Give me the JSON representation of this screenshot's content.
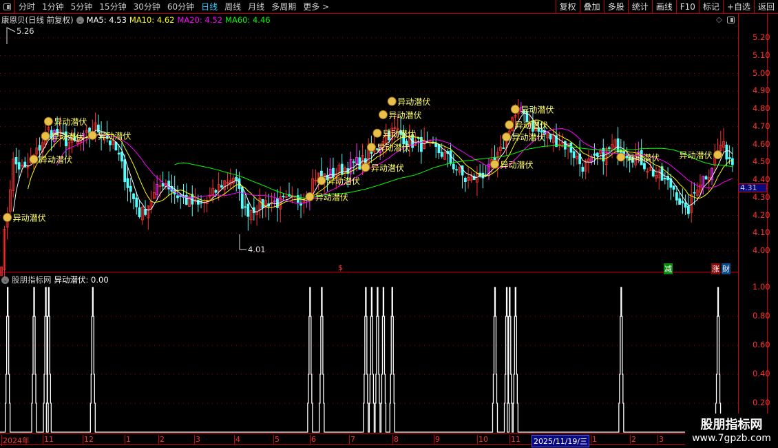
{
  "toolbar": {
    "periods": [
      "分时",
      "1分钟",
      "5分钟",
      "15分钟",
      "30分钟",
      "60分钟",
      "日线",
      "周线",
      "月线",
      "多周期",
      "更多 >"
    ],
    "active_period": "日线",
    "buttons": [
      "复权",
      "叠加",
      "多股",
      "统计",
      "画线",
      "F10",
      "标记",
      "+自选",
      "返回"
    ]
  },
  "header": {
    "title": "康恩贝(日线 前复权)",
    "ma5": "MA5: 4.53",
    "ma10": "MA10: 4.62",
    "ma20": "MA20: 4.52",
    "ma60": "MA60: 4.46"
  },
  "colors": {
    "up": "#ff3232",
    "down": "#54ffff",
    "ma5": "#ffffff",
    "ma10": "#ffff00",
    "ma20": "#ff00ff",
    "ma60": "#00ff00",
    "axis": "#ff3333",
    "grid": "#b00000"
  },
  "chart_data": {
    "type": "candlestick",
    "price_axis": [
      "5.20",
      "5.10",
      "5.00",
      "4.90",
      "4.80",
      "4.70",
      "4.60",
      "4.50",
      "4.40",
      "4.30",
      "4.20",
      "4.10",
      "4.00"
    ],
    "ylim": [
      3.9,
      5.3
    ],
    "approx_close": [
      3.95,
      4.5,
      4.45,
      4.55,
      4.68,
      4.65,
      4.6,
      4.62,
      4.7,
      4.65,
      4.55,
      4.35,
      4.2,
      4.3,
      4.4,
      4.32,
      4.28,
      4.25,
      4.3,
      4.38,
      4.42,
      4.22,
      4.25,
      4.28,
      4.27,
      4.28,
      4.3,
      4.42,
      4.42,
      4.45,
      4.48,
      4.5,
      4.55,
      4.65,
      4.68,
      4.62,
      4.6,
      4.58,
      4.55,
      4.48,
      4.4,
      4.42,
      4.45,
      4.55,
      4.75,
      4.78,
      4.68,
      4.65,
      4.62,
      4.58,
      4.48,
      4.5,
      4.55,
      4.6,
      4.55,
      4.52,
      4.45,
      4.4,
      4.35,
      4.2,
      4.38,
      4.45,
      4.6,
      4.5
    ],
    "high_label": "5.26",
    "low_label": "4.01",
    "current_price": "4.31",
    "signal_label": "异动潜伏",
    "signal_bars": [
      2,
      11,
      15,
      16,
      31,
      105,
      109,
      124,
      126,
      128,
      130,
      133,
      168,
      172,
      173,
      175,
      211,
      244
    ]
  },
  "markers": {
    "dollar": "$",
    "jian": "减",
    "zhang": "涨",
    "cai": "财"
  },
  "indicator": {
    "name": "股朋指标网",
    "value": "异动潜伏: 0.00",
    "axis": [
      "1.00",
      "0.80",
      "0.60",
      "0.40",
      "0.20"
    ]
  },
  "date_axis": [
    "2024年",
    "11",
    "12",
    "1",
    "2",
    "3",
    "4",
    "5",
    "6",
    "7",
    "8",
    "9",
    "10",
    "11",
    "2025/11/19/三",
    "1",
    "2",
    "3"
  ],
  "watermark": {
    "title": "股朋指标网",
    "url": "www.7gpzb.com"
  }
}
